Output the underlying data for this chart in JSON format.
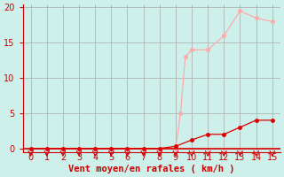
{
  "bg_color": "#cdf0ea",
  "grid_color": "#aaaaaa",
  "line1_color": "#ffaaaa",
  "line2_color": "#dd0000",
  "arrow_color": "#dd0000",
  "xlabel": "Vent moyen/en rafales ( km/h )",
  "xlabel_color": "#cc0000",
  "tick_color": "#cc0000",
  "ylabel_ticks": [
    0,
    5,
    10,
    15,
    20
  ],
  "xtick_labels": [
    "0",
    "1",
    "2",
    "3",
    "4",
    "5",
    "6",
    "7",
    "8",
    "9",
    "10",
    "11",
    "12",
    "13",
    "14",
    "15"
  ],
  "xlim": [
    -0.5,
    15.5
  ],
  "ylim": [
    -0.5,
    20.5
  ],
  "line1_x": [
    0,
    1,
    2,
    3,
    4,
    5,
    6,
    7,
    8,
    9,
    9.3,
    9.6,
    10,
    11,
    12,
    13,
    14,
    15
  ],
  "line1_y": [
    0.0,
    0.0,
    0.0,
    0.0,
    0.0,
    0.0,
    0.0,
    0.0,
    0.0,
    0.0,
    5.0,
    13.0,
    14.0,
    14.0,
    16.0,
    19.5,
    18.5,
    18.0
  ],
  "line2_x": [
    0,
    1,
    2,
    3,
    4,
    5,
    6,
    7,
    8,
    9,
    10,
    11,
    12,
    13,
    14,
    15
  ],
  "line2_y": [
    0.0,
    0.0,
    0.0,
    0.0,
    0.0,
    0.0,
    0.0,
    0.0,
    0.0,
    0.3,
    1.2,
    2.0,
    2.0,
    3.0,
    4.0,
    4.0
  ],
  "marker_size": 2.5,
  "linewidth": 0.9,
  "xlabel_fontsize": 7.5,
  "tick_fontsize": 7,
  "ytick_fontsize": 7
}
